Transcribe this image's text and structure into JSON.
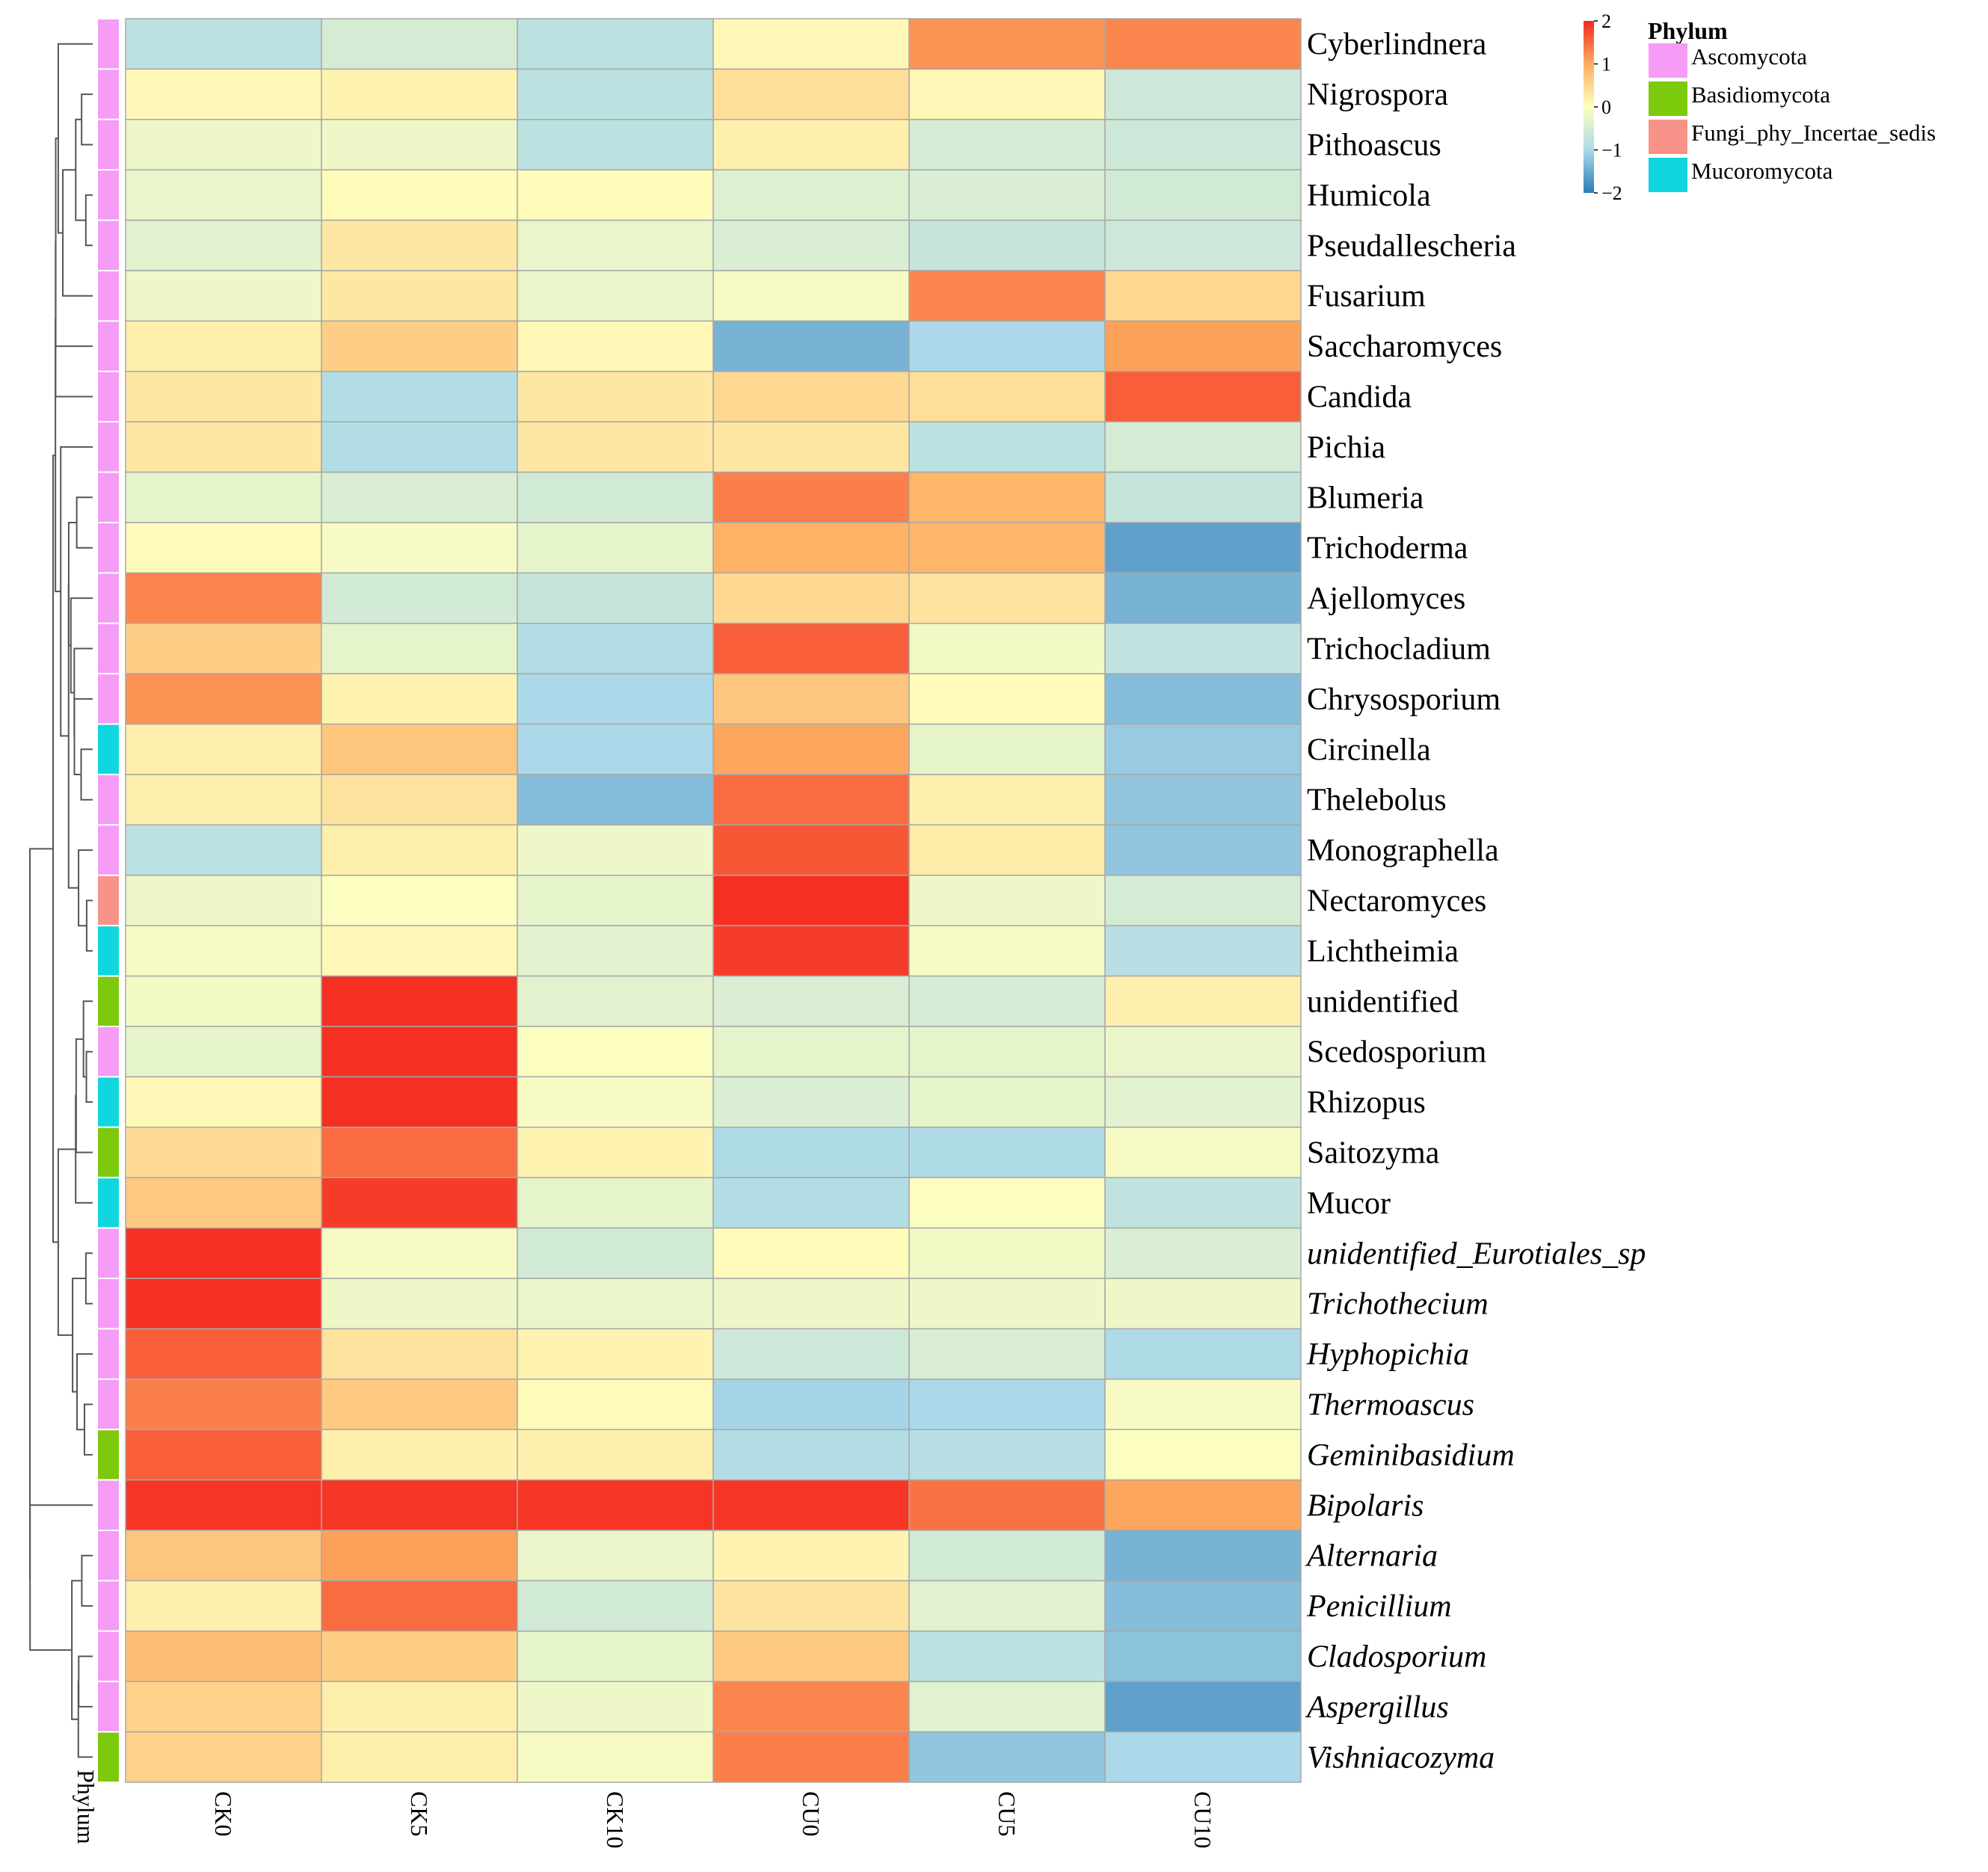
{
  "chart_data": {
    "type": "heatmap",
    "columns": [
      "CK0",
      "CK5",
      "CK10",
      "CU0",
      "CU5",
      "CU10"
    ],
    "annotation_axis_label": "Phylum",
    "rows": [
      {
        "name": "Cyberlindnera",
        "phylum": "Ascomycota",
        "italic": false,
        "values": [
          -0.8,
          -0.5,
          -0.8,
          0.1,
          1.2,
          1.3
        ]
      },
      {
        "name": "Nigrospora",
        "phylum": "Ascomycota",
        "italic": false,
        "values": [
          0.1,
          0.15,
          -0.8,
          0.4,
          0.1,
          -0.6
        ]
      },
      {
        "name": "Pithoascus",
        "phylum": "Ascomycota",
        "italic": false,
        "values": [
          -0.2,
          -0.2,
          -0.8,
          0.2,
          -0.5,
          -0.6
        ]
      },
      {
        "name": "Humicola",
        "phylum": "Ascomycota",
        "italic": false,
        "values": [
          -0.25,
          0.05,
          0.05,
          -0.4,
          -0.45,
          -0.55
        ]
      },
      {
        "name": "Pseudallescheria",
        "phylum": "Ascomycota",
        "italic": false,
        "values": [
          -0.35,
          0.3,
          -0.25,
          -0.45,
          -0.7,
          -0.6
        ]
      },
      {
        "name": "Fusarium",
        "phylum": "Ascomycota",
        "italic": false,
        "values": [
          -0.2,
          0.3,
          -0.25,
          -0.1,
          1.3,
          0.5
        ]
      },
      {
        "name": "Saccharomyces",
        "phylum": "Ascomycota",
        "italic": false,
        "values": [
          0.2,
          0.6,
          0.1,
          -1.4,
          -1.0,
          1.1
        ]
      },
      {
        "name": "Candida",
        "phylum": "Ascomycota",
        "italic": false,
        "values": [
          0.3,
          -0.9,
          0.3,
          0.5,
          0.4,
          1.6
        ]
      },
      {
        "name": "Pichia",
        "phylum": "Ascomycota",
        "italic": false,
        "values": [
          0.3,
          -0.9,
          0.3,
          0.3,
          -0.8,
          -0.5
        ]
      },
      {
        "name": "Blumeria",
        "phylum": "Ascomycota",
        "italic": false,
        "values": [
          -0.3,
          -0.45,
          -0.55,
          1.35,
          0.9,
          -0.7
        ]
      },
      {
        "name": "Trichoderma",
        "phylum": "Ascomycota",
        "italic": false,
        "values": [
          0.05,
          -0.1,
          -0.3,
          0.95,
          0.9,
          -1.6
        ]
      },
      {
        "name": "Ajellomyces",
        "phylum": "Ascomycota",
        "italic": false,
        "values": [
          1.3,
          -0.55,
          -0.7,
          0.5,
          0.35,
          -1.4
        ]
      },
      {
        "name": "Trichocladium",
        "phylum": "Ascomycota",
        "italic": false,
        "values": [
          0.6,
          -0.3,
          -0.9,
          1.6,
          -0.15,
          -0.75
        ]
      },
      {
        "name": "Chrysosporium",
        "phylum": "Ascomycota",
        "italic": false,
        "values": [
          1.2,
          0.15,
          -1.0,
          0.7,
          0.05,
          -1.3
        ]
      },
      {
        "name": "Circinella",
        "phylum": "Mucoromycota",
        "italic": false,
        "values": [
          0.2,
          0.7,
          -1.0,
          1.05,
          -0.3,
          -1.15
        ]
      },
      {
        "name": "Thelebolus",
        "phylum": "Ascomycota",
        "italic": false,
        "values": [
          0.2,
          0.35,
          -1.3,
          1.5,
          0.2,
          -1.2
        ]
      },
      {
        "name": "Monographella",
        "phylum": "Ascomycota",
        "italic": false,
        "values": [
          -0.8,
          0.2,
          -0.2,
          1.65,
          0.25,
          -1.2
        ]
      },
      {
        "name": "Nectaromyces",
        "phylum": "Fungi_phy_Incertae_sedis",
        "italic": false,
        "values": [
          -0.2,
          -0.05,
          -0.3,
          1.95,
          -0.2,
          -0.5
        ]
      },
      {
        "name": "Lichtheimia",
        "phylum": "Mucoromycota",
        "italic": false,
        "values": [
          -0.1,
          0.1,
          -0.35,
          1.85,
          -0.1,
          -0.85
        ]
      },
      {
        "name": "unidentified",
        "phylum": "Basidiomycota",
        "italic": false,
        "values": [
          -0.15,
          1.95,
          -0.35,
          -0.45,
          -0.5,
          0.2
        ]
      },
      {
        "name": "Scedosporium",
        "phylum": "Ascomycota",
        "italic": false,
        "values": [
          -0.3,
          1.95,
          -0.05,
          -0.3,
          -0.3,
          -0.25
        ]
      },
      {
        "name": "Rhizopus",
        "phylum": "Mucoromycota",
        "italic": false,
        "values": [
          0.1,
          1.95,
          -0.1,
          -0.45,
          -0.3,
          -0.35
        ]
      },
      {
        "name": "Saitozyma",
        "phylum": "Basidiomycota",
        "italic": false,
        "values": [
          0.45,
          1.5,
          0.15,
          -0.95,
          -0.95,
          -0.1
        ]
      },
      {
        "name": "Mucor",
        "phylum": "Mucoromycota",
        "italic": false,
        "values": [
          0.65,
          1.85,
          -0.3,
          -0.9,
          -0.05,
          -0.75
        ]
      },
      {
        "name": "unidentified_Eurotiales_sp",
        "phylum": "Ascomycota",
        "italic": true,
        "values": [
          1.95,
          -0.1,
          -0.55,
          0.05,
          -0.15,
          -0.45
        ]
      },
      {
        "name": "Trichothecium",
        "phylum": "Ascomycota",
        "italic": true,
        "values": [
          1.95,
          -0.2,
          -0.25,
          -0.2,
          -0.2,
          -0.2
        ]
      },
      {
        "name": "Hyphopichia",
        "phylum": "Ascomycota",
        "italic": true,
        "values": [
          1.6,
          0.35,
          0.15,
          -0.6,
          -0.45,
          -0.95
        ]
      },
      {
        "name": "Thermoascus",
        "phylum": "Ascomycota",
        "italic": true,
        "values": [
          1.35,
          0.65,
          0.05,
          -1.05,
          -1.0,
          -0.1
        ]
      },
      {
        "name": "Geminibasidium",
        "phylum": "Basidiomycota",
        "italic": true,
        "values": [
          1.6,
          0.2,
          0.2,
          -0.9,
          -0.85,
          -0.05
        ]
      },
      {
        "name": "Bipolaris",
        "phylum": "Ascomycota",
        "italic": true,
        "values": [
          1.9,
          1.9,
          1.9,
          1.9,
          1.45,
          1.05
        ]
      },
      {
        "name": "Alternaria",
        "phylum": "Ascomycota",
        "italic": true,
        "values": [
          0.7,
          1.1,
          -0.25,
          0.15,
          -0.55,
          -1.4
        ]
      },
      {
        "name": "Penicillium",
        "phylum": "Ascomycota",
        "italic": true,
        "values": [
          0.2,
          1.5,
          -0.55,
          0.35,
          -0.35,
          -1.3
        ]
      },
      {
        "name": "Cladosporium",
        "phylum": "Ascomycota",
        "italic": true,
        "values": [
          0.8,
          0.6,
          -0.3,
          0.65,
          -0.8,
          -1.25
        ]
      },
      {
        "name": "Aspergillus",
        "phylum": "Ascomycota",
        "italic": true,
        "values": [
          0.55,
          0.2,
          -0.2,
          1.3,
          -0.35,
          -1.6
        ]
      },
      {
        "name": "Vishniacozyma",
        "phylum": "Basidiomycota",
        "italic": true,
        "values": [
          0.55,
          0.2,
          -0.1,
          1.35,
          -1.2,
          -1.0
        ]
      }
    ],
    "color_scale": {
      "min": -2,
      "max": 2,
      "ticks": [
        2,
        1,
        0,
        -1,
        -2
      ],
      "tick_labels": [
        "2",
        "1",
        "0",
        "−1",
        "−2"
      ],
      "stops": [
        {
          "value": -2,
          "color": "#2c7bb6"
        },
        {
          "value": -1,
          "color": "#abd9e9"
        },
        {
          "value": 0,
          "color": "#ffffbf"
        },
        {
          "value": 1,
          "color": "#fdae61"
        },
        {
          "value": 2,
          "color": "#f5281e"
        }
      ]
    },
    "legend": {
      "title": "Phylum",
      "placement": "top-right",
      "items": [
        {
          "label": "Ascomycota",
          "color": "#f49cf6"
        },
        {
          "label": "Basidiomycota",
          "color": "#7dc90c"
        },
        {
          "label": "Fungi_phy_Incertae_sedis",
          "color": "#f8938a"
        },
        {
          "label": "Mucoromycota",
          "color": "#10d6de"
        }
      ]
    },
    "dendrogram": "row clustering (left)"
  }
}
